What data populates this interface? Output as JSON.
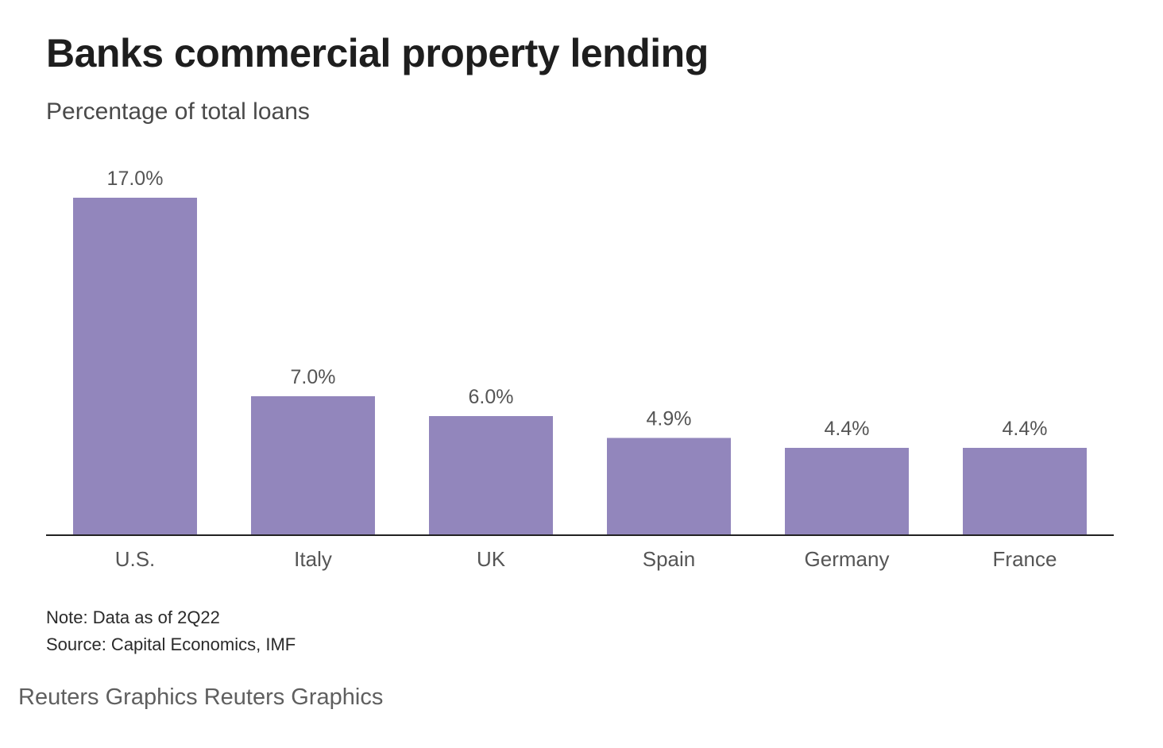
{
  "chart_data": {
    "type": "bar",
    "title": "Banks commercial property lending",
    "subtitle": "Percentage of total loans",
    "categories": [
      "U.S.",
      "Italy",
      "UK",
      "Spain",
      "Germany",
      "France"
    ],
    "values": [
      17.0,
      7.0,
      6.0,
      4.9,
      4.4,
      4.4
    ],
    "value_labels": [
      "17.0%",
      "7.0%",
      "6.0%",
      "4.9%",
      "4.4%",
      "4.4%"
    ],
    "ylim": [
      0,
      17
    ],
    "xlabel": "",
    "ylabel": "",
    "grid": false,
    "legend": "none",
    "bar_color": "#9286bc"
  },
  "footer": {
    "note": "Note: Data as of 2Q22",
    "source": "Source: Capital Economics, IMF",
    "credit": "Reuters Graphics Reuters Graphics"
  }
}
